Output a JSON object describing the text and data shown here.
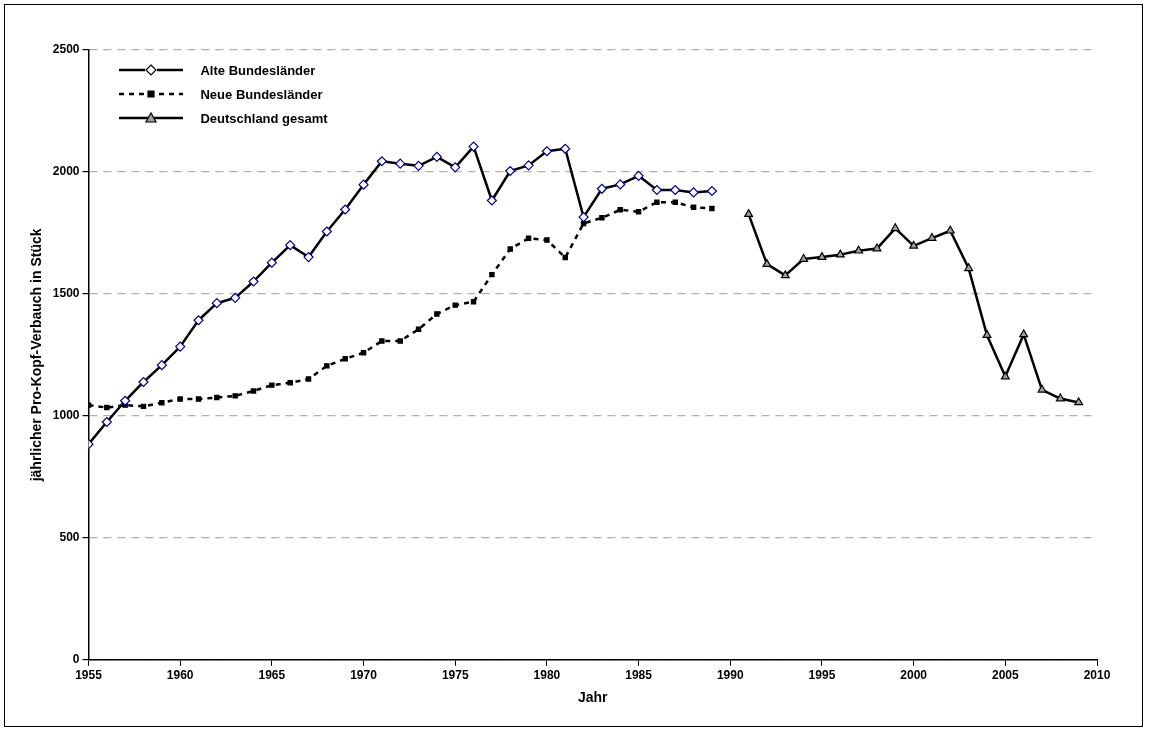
{
  "chart_data": {
    "type": "line",
    "xlabel": "Jahr",
    "ylabel": "jährlicher Pro-Kopf-Verbauch in Stück",
    "xlim": [
      1955,
      2010
    ],
    "xticks": [
      1955,
      1960,
      1965,
      1970,
      1975,
      1980,
      1985,
      1990,
      1995,
      2000,
      2005,
      2010
    ],
    "ylim": [
      0,
      2500
    ],
    "yticks": [
      0,
      500,
      1000,
      1500,
      2000,
      2500
    ],
    "grid": "y",
    "legend": "top left",
    "series": [
      {
        "name": "Alte Bundesländer",
        "color": "#000000",
        "marker": "diamond",
        "line_style": "solid",
        "x": [
          1955,
          1956,
          1957,
          1958,
          1959,
          1960,
          1961,
          1962,
          1963,
          1964,
          1965,
          1966,
          1967,
          1968,
          1969,
          1970,
          1971,
          1972,
          1973,
          1974,
          1975,
          1976,
          1977,
          1978,
          1979,
          1980,
          1981,
          1982,
          1983,
          1984,
          1985,
          1986,
          1987,
          1988,
          1989
        ],
        "values": [
          884,
          975,
          1062,
          1139,
          1208,
          1284,
          1392,
          1462,
          1484,
          1551,
          1628,
          1700,
          1651,
          1756,
          1846,
          1948,
          2044,
          2034,
          2025,
          2062,
          2019,
          2104,
          1883,
          2004,
          2027,
          2085,
          2095,
          1815,
          1931,
          1949,
          1984,
          1926,
          1926,
          1916,
          1922
        ]
      },
      {
        "name": "Neue Bundesländer",
        "color": "#000000",
        "marker": "square",
        "line_style": "dashed",
        "x": [
          1955,
          1956,
          1957,
          1958,
          1959,
          1960,
          1961,
          1962,
          1963,
          1964,
          1965,
          1966,
          1967,
          1968,
          1969,
          1970,
          1971,
          1972,
          1973,
          1974,
          1975,
          1976,
          1977,
          1978,
          1979,
          1980,
          1981,
          1982,
          1983,
          1984,
          1985,
          1986,
          1987,
          1988,
          1989
        ],
        "values": [
          1044,
          1034,
          1044,
          1039,
          1054,
          1069,
          1069,
          1075,
          1082,
          1102,
          1126,
          1136,
          1151,
          1205,
          1234,
          1259,
          1307,
          1307,
          1355,
          1418,
          1454,
          1468,
          1579,
          1684,
          1728,
          1721,
          1649,
          1789,
          1812,
          1845,
          1837,
          1876,
          1876,
          1855,
          1850
        ]
      },
      {
        "name": "Deutschland gesamt",
        "color": "#000000",
        "marker": "triangle",
        "line_style": "solid",
        "x": [
          1991,
          1992,
          1993,
          1994,
          1995,
          1996,
          1997,
          1998,
          1999,
          2000,
          2001,
          2002,
          2003,
          2004,
          2005,
          2006,
          2007,
          2008,
          2009
        ],
        "values": [
          1827,
          1622,
          1576,
          1643,
          1651,
          1661,
          1677,
          1686,
          1769,
          1697,
          1729,
          1759,
          1605,
          1331,
          1161,
          1334,
          1107,
          1071,
          1055
        ]
      }
    ]
  }
}
